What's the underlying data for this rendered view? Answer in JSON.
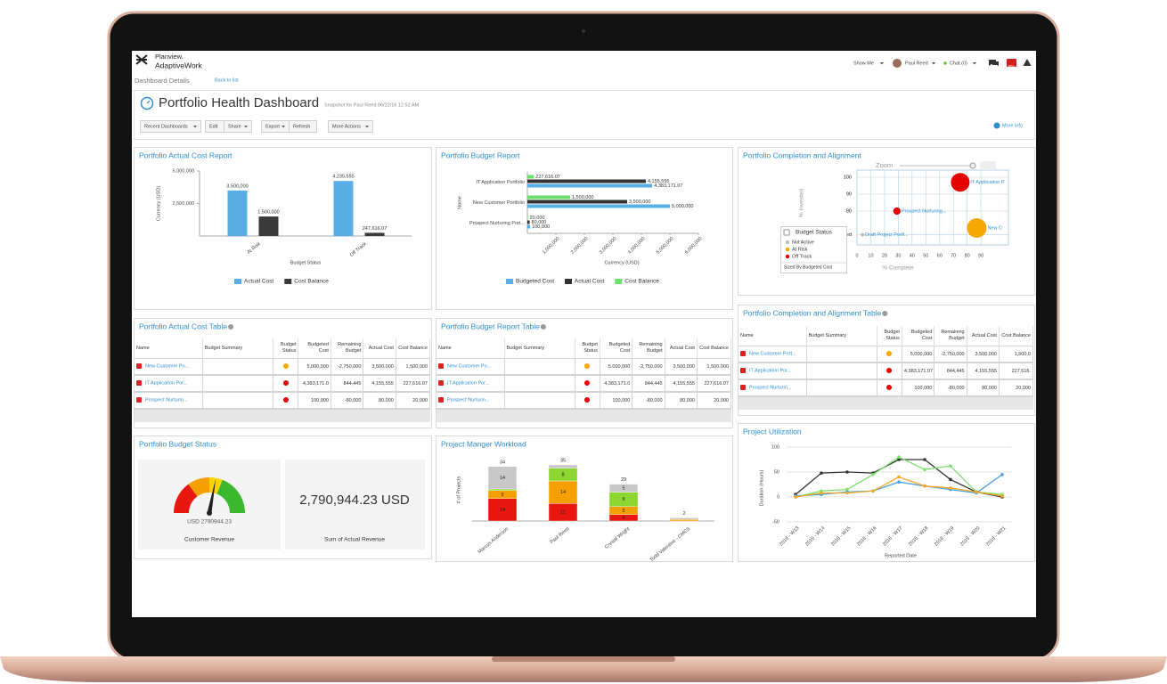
{
  "header": {
    "logo_top": "Planview.",
    "logo_bottom": "AdaptiveWork",
    "menu": "Show Me",
    "user": "Paul Reed",
    "chat": "Chat (0)",
    "badge": "99+"
  },
  "breadcrumb": {
    "title": "Dashboard Details",
    "back": "Back to list"
  },
  "dashboard": {
    "title": "Portfolio Health Dashboard",
    "snapshot": "Snapshot for Paul Reed 06/22/16 12:52 AM",
    "buttons": [
      "Recent Dashboards",
      "Edit",
      "Share",
      "Export",
      "Refresh",
      "More Actions"
    ],
    "more_info": "More info"
  },
  "chart_data": [
    {
      "type": "bar",
      "title": "Portfolio Actual Cost Report",
      "x_label": "Budget Status",
      "y_label": "Currency (USD)",
      "categories": [
        "At Risk",
        "Off Track"
      ],
      "ylim": [
        0,
        5000000
      ],
      "yticks": [
        {
          "value": 2500000,
          "label": "2,500,000"
        },
        {
          "value": 5000000,
          "label": "5,000,000"
        }
      ],
      "series": [
        {
          "name": "Actual Cost",
          "color": "#5aaee6",
          "values": [
            3500000,
            4235555
          ],
          "value_labels": [
            "3,500,000",
            "4,235,555"
          ]
        },
        {
          "name": "Cost Balance",
          "color": "#3a3a3a",
          "values": [
            1500000,
            247616.07
          ],
          "value_labels": [
            "1,500,000",
            "247,616.07"
          ]
        }
      ]
    },
    {
      "type": "hbar",
      "title": "Portfolio Budget Report",
      "x_label": "Currency (USD)",
      "y_label": "Name",
      "categories": [
        "IT Application Portfolio",
        "New Customer Portfolio",
        "Prospect Nurturing Port..."
      ],
      "xlim": [
        0,
        6000000
      ],
      "xticks": [
        {
          "value": 1000000,
          "label": "1,000,000"
        },
        {
          "value": 2000000,
          "label": "2,000,000"
        },
        {
          "value": 3000000,
          "label": "3,000,000"
        },
        {
          "value": 4000000,
          "label": "4,000,000"
        },
        {
          "value": 5000000,
          "label": "5,000,000"
        },
        {
          "value": 6000000,
          "label": "6,000,000"
        }
      ],
      "series": [
        {
          "name": "Budgeted Cost",
          "color": "#5aaee6",
          "values": [
            4383171.07,
            5000000,
            100000
          ],
          "value_labels": [
            "4,383,171.07",
            "5,000,000",
            "100,000"
          ]
        },
        {
          "name": "Actual Cost",
          "color": "#333333",
          "values": [
            4155555,
            3500000,
            80000
          ],
          "value_labels": [
            "4,155,555",
            "3,500,000",
            "80,000"
          ]
        },
        {
          "name": "Cost Balance",
          "color": "#6ddf6d",
          "values": [
            227616.07,
            1500000,
            20000
          ],
          "value_labels": [
            "227,616.07",
            "1,500,000",
            "20,000"
          ]
        }
      ]
    },
    {
      "type": "bubble",
      "title": "Portfolio Completion and Alignment",
      "zoom_label": "Zoom",
      "x_label": "% Complete",
      "y_label": "% Invested",
      "xlim": [
        0,
        110
      ],
      "ylim": [
        60,
        100
      ],
      "xticks": [
        0,
        10,
        20,
        30,
        40,
        50,
        60,
        70,
        80,
        90
      ],
      "yticks": [
        {
          "value": 66,
          "label": "Undefined"
        },
        80,
        90,
        100
      ],
      "points": {
        "names": [
          "IT Application P",
          "Prospect Nurturing...",
          "New C",
          "Draft Project Portf..."
        ],
        "x": [
          75,
          29,
          87,
          4
        ],
        "y": [
          97,
          80,
          70,
          66
        ],
        "sizes": [
          4383171.07,
          100000,
          5000000,
          null
        ],
        "colors": [
          "#e60000",
          "#e60000",
          "#f5a800",
          "#bbbbbb"
        ]
      },
      "legend": {
        "title": "Budget Status",
        "items": [
          "Not Active",
          "At Risk",
          "Off Track"
        ],
        "colors": [
          "#bbbbbb",
          "#f5a800",
          "#e60000"
        ],
        "note": "Sized By Budgeted Cost"
      }
    },
    {
      "type": "gauge",
      "title": "Portfolio Budget Status",
      "value": 2790944.23,
      "value_label": "USD 2790944.23",
      "caption": "Customer Revenue",
      "range": [
        0,
        5000000
      ],
      "kpi_label": "2,790,944.23 USD",
      "kpi_caption": "Sum of Actual Revenue"
    },
    {
      "type": "stacked_bar",
      "title": "Project Manger Workload",
      "y_label": "# of Projects",
      "categories": [
        "Marcus Anderson",
        "Paul Reed",
        "Crystal Wright",
        "Todd Valentine - CMCS"
      ],
      "ylim": [
        0,
        40
      ],
      "series": [
        {
          "color": "#e8170f",
          "values": [
            14,
            11,
            4,
            0
          ]
        },
        {
          "color": "#f5a000",
          "values": [
            5,
            14,
            5,
            1
          ]
        },
        {
          "color": "#8bd630",
          "values": [
            1,
            8,
            9,
            0
          ]
        },
        {
          "color": "#c8c8c8",
          "values": [
            14,
            2,
            5,
            1
          ]
        }
      ],
      "totals": [
        34,
        35,
        23,
        2
      ]
    },
    {
      "type": "line",
      "title": "Project Utilization",
      "x_label": "Reported Date",
      "y_label": "Duration (Hours)",
      "categories": [
        "2016 - W13",
        "2016 - W14",
        "2016 - W15",
        "2016 - W16",
        "2016 - W17",
        "2016 - W18",
        "2016 - W19",
        "2016 - W20",
        "2016 - W21"
      ],
      "ylim": [
        -50,
        100
      ],
      "yticks": [
        -50,
        0,
        50,
        100
      ],
      "series": [
        {
          "color": "#333333",
          "values": [
            5,
            48,
            50,
            48,
            75,
            75,
            35,
            10,
            0
          ]
        },
        {
          "color": "#7de06e",
          "values": [
            0,
            12,
            15,
            45,
            80,
            55,
            62,
            10,
            5
          ]
        },
        {
          "color": "#4aa3df",
          "values": [
            2,
            5,
            10,
            12,
            30,
            22,
            15,
            8,
            45
          ]
        },
        {
          "color": "#f5a623",
          "values": [
            0,
            8,
            8,
            12,
            40,
            22,
            18,
            10,
            2
          ]
        }
      ]
    }
  ],
  "tables": [
    {
      "title": "Portfolio Actual Cost Table",
      "columns": [
        "Name",
        "Budget Summary",
        "Budget Status",
        "Budgeted Cost",
        "Remaining Budget",
        "Actual Cost",
        "Cost Balance"
      ],
      "rows": [
        {
          "name": "New Customer Po...",
          "cells": [
            "5,000,000",
            "-2,750,000",
            "3,500,000",
            "1,500,000"
          ]
        },
        {
          "name": "IT Application Por...",
          "cells": [
            "4,383,171.0",
            "844,445",
            "4,155,555",
            "227,616.07"
          ]
        },
        {
          "name": "Prospect Nurturin...",
          "cells": [
            "100,000",
            "-80,000",
            "80,000",
            "20,000"
          ]
        }
      ],
      "status_colors": [
        "#f5a800",
        "#e60000",
        "#e60000"
      ]
    },
    {
      "title": "Portfolio Budget Report Table",
      "columns": [
        "Name",
        "Budget Summary",
        "Budget Status",
        "Budgeted Cost",
        "Remaining Budget",
        "Actual Cost",
        "Cost Balance"
      ],
      "rows": [
        {
          "name": "New Customer Po...",
          "cells": [
            "5,000,000",
            "-2,750,000",
            "3,500,000",
            "1,500,000"
          ]
        },
        {
          "name": "IT Application Por...",
          "cells": [
            "4,383,171.0",
            "844,445",
            "4,155,555",
            "227,616.07"
          ]
        },
        {
          "name": "Prospect Nurturin...",
          "cells": [
            "100,000",
            "-80,000",
            "80,000",
            "20,000"
          ]
        }
      ],
      "status_colors": [
        "#f5a800",
        "#e60000",
        "#e60000"
      ]
    },
    {
      "title": "Portfolio Completion and Alignment Table",
      "columns": [
        "Name",
        "Budget Summary",
        "Budget Status",
        "Budgeted Cost",
        "Remaining Budget",
        "Actual Cost",
        "Cost Balance"
      ],
      "rows": [
        {
          "name": "New Customer Port...",
          "cells": [
            "5,000,000",
            "-2,750,000",
            "3,500,000",
            "1,500,0"
          ]
        },
        {
          "name": "IT Application Por...",
          "cells": [
            "4,383,171.07",
            "844,445",
            "4,155,555",
            "227,616."
          ]
        },
        {
          "name": "Prospect Nurturin...",
          "cells": [
            "100,000",
            "-80,000",
            "80,000",
            "20,000"
          ]
        }
      ],
      "status_colors": [
        "#f5a800",
        "#e60000",
        "#e60000"
      ]
    }
  ]
}
